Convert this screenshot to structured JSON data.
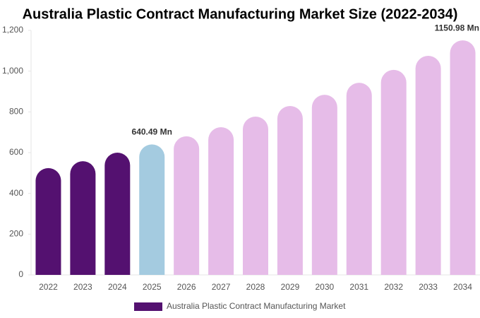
{
  "chart_data": {
    "type": "bar",
    "title": "Australia Plastic Contract Manufacturing Market Size (2022-2034)",
    "categories": [
      "2022",
      "2023",
      "2024",
      "2025",
      "2026",
      "2027",
      "2028",
      "2029",
      "2030",
      "2031",
      "2032",
      "2033",
      "2034"
    ],
    "series": [
      {
        "name": "Australia Plastic Contract Manufacturing Market",
        "color": "#541170",
        "values": [
          524,
          558,
          600,
          640.49,
          680,
          725,
          777,
          829,
          884,
          943,
          1006,
          1075,
          1150.98
        ],
        "value_labels": [
          null,
          null,
          null,
          "640.49 Mn",
          null,
          null,
          null,
          null,
          null,
          null,
          null,
          null,
          "1150.98 Mn"
        ],
        "colors": [
          "#541170",
          "#541170",
          "#541170",
          "#a4cbe0",
          "#e6bce8",
          "#e6bce8",
          "#e6bce8",
          "#e6bce8",
          "#e6bce8",
          "#e6bce8",
          "#e6bce8",
          "#e6bce8",
          "#e6bce8"
        ]
      }
    ],
    "ylim": [
      0,
      1200
    ],
    "yticks": [
      0,
      200,
      400,
      600,
      800,
      {
        "value": 1000,
        "label": "1,000"
      },
      {
        "value": 1200,
        "label": "1,200"
      }
    ],
    "grid": false,
    "legend": "bottom"
  }
}
